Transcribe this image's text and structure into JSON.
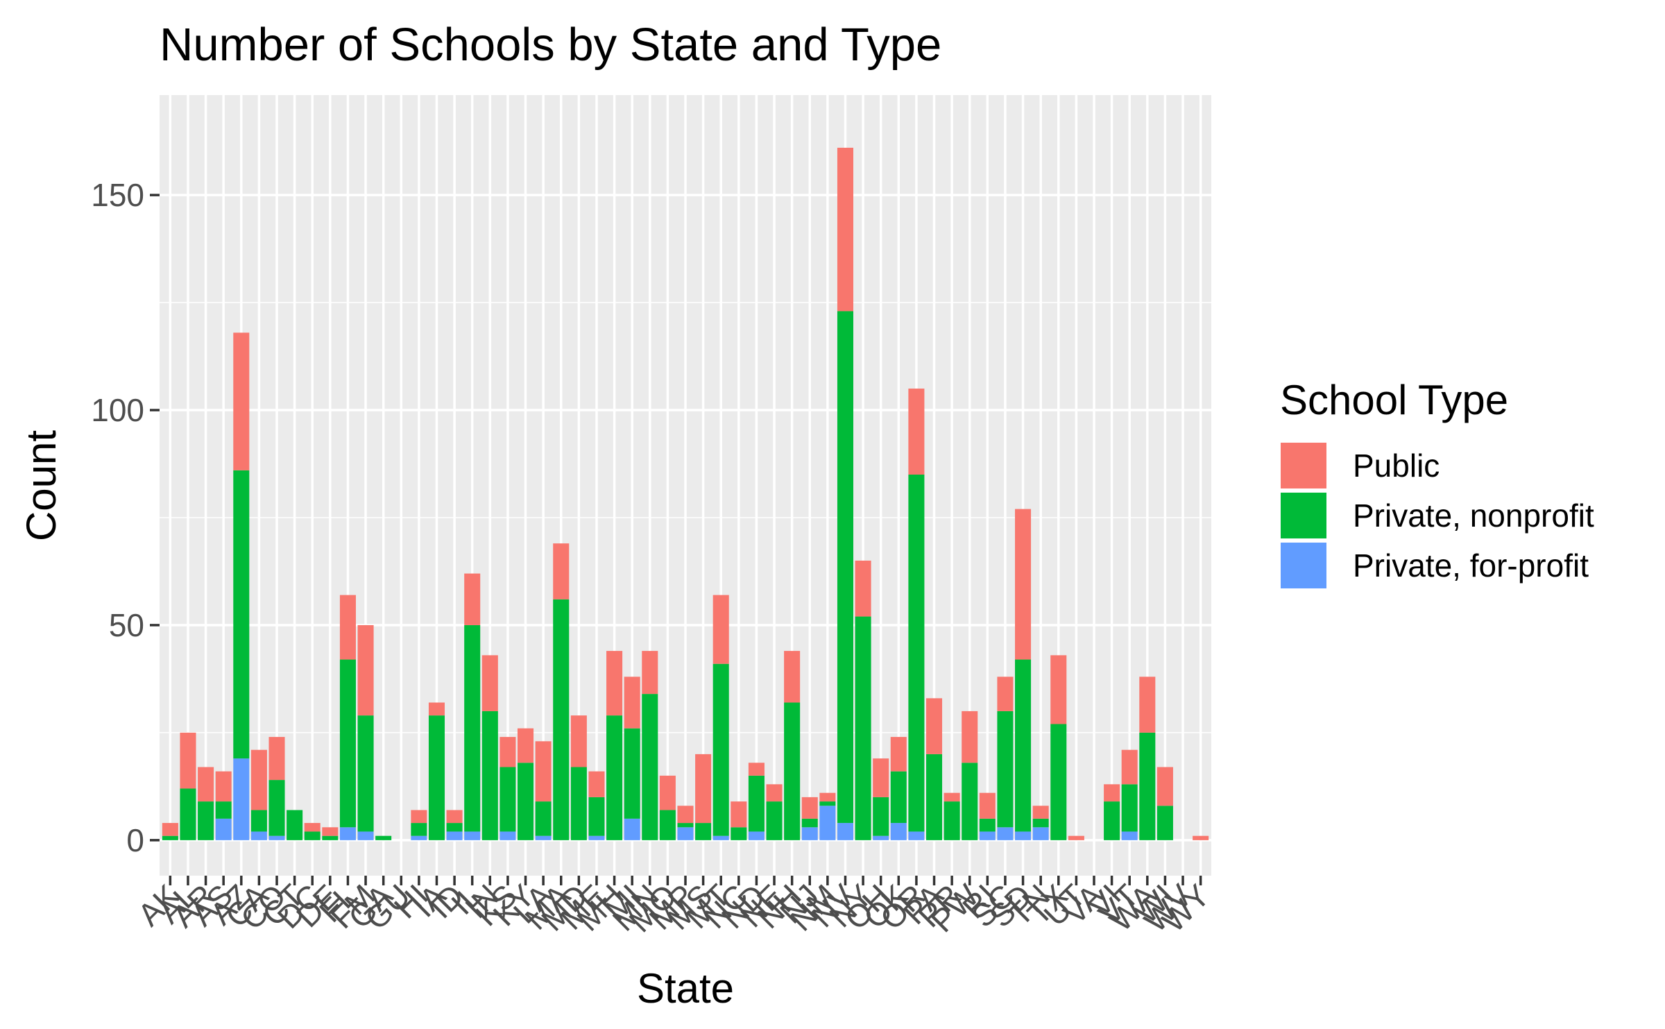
{
  "chart_data": {
    "type": "bar",
    "stacked": true,
    "title": "Number of Schools by State and Type",
    "xlabel": "State",
    "ylabel": "Count",
    "ylim": [
      -8.25,
      173.25
    ],
    "yticks": [
      0,
      50,
      100,
      150
    ],
    "grid": true,
    "legend": {
      "title": "School Type",
      "position": "right"
    },
    "categories": [
      "AK",
      "AL",
      "AR",
      "AS",
      "AZ",
      "CA",
      "CO",
      "CT",
      "DC",
      "DE",
      "FL",
      "FM",
      "GA",
      "GU",
      "HI",
      "IA",
      "ID",
      "IL",
      "IN",
      "KS",
      "KY",
      "LA",
      "MA",
      "MD",
      "ME",
      "MH",
      "MI",
      "MN",
      "MO",
      "MP",
      "MS",
      "MT",
      "NC",
      "ND",
      "NE",
      "NH",
      "NJ",
      "NM",
      "NV",
      "NY",
      "OH",
      "OK",
      "OR",
      "PA",
      "PR",
      "PW",
      "RI",
      "SC",
      "SD",
      "TN",
      "TX",
      "UT",
      "VA",
      "VI",
      "VT",
      "WA",
      "WI",
      "WV",
      "WY"
    ],
    "series": [
      {
        "name": "Private, for-profit",
        "color": "#619CFF",
        "values": [
          0,
          0,
          0,
          5,
          19,
          2,
          1,
          0,
          0,
          0,
          3,
          2,
          0,
          0,
          1,
          0,
          2,
          2,
          0,
          2,
          0,
          1,
          0,
          0,
          1,
          0,
          5,
          0,
          0,
          3,
          0,
          1,
          0,
          2,
          0,
          0,
          3,
          8,
          4,
          0,
          1,
          4,
          2,
          0,
          0,
          0,
          2,
          3,
          2,
          3,
          0,
          0,
          0,
          0,
          2,
          0,
          0,
          0,
          0
        ]
      },
      {
        "name": "Private, nonprofit",
        "color": "#00BA38",
        "values": [
          1,
          12,
          9,
          4,
          67,
          5,
          13,
          7,
          2,
          1,
          39,
          27,
          1,
          0,
          3,
          29,
          2,
          48,
          30,
          15,
          18,
          8,
          56,
          17,
          9,
          29,
          21,
          34,
          7,
          1,
          4,
          40,
          3,
          13,
          9,
          32,
          2,
          1,
          119,
          52,
          9,
          12,
          83,
          20,
          9,
          18,
          3,
          27,
          40,
          2,
          27,
          0,
          0,
          9,
          11,
          25,
          8,
          0,
          0
        ]
      },
      {
        "name": "Public",
        "color": "#F8766D",
        "values": [
          3,
          13,
          8,
          7,
          32,
          14,
          10,
          0,
          2,
          2,
          15,
          21,
          0,
          0,
          3,
          3,
          3,
          12,
          13,
          7,
          8,
          14,
          13,
          12,
          6,
          15,
          12,
          10,
          8,
          4,
          16,
          16,
          6,
          3,
          4,
          12,
          5,
          2,
          38,
          13,
          9,
          8,
          20,
          13,
          2,
          12,
          6,
          8,
          35,
          3,
          16,
          1,
          0,
          4,
          8,
          13,
          9,
          0,
          1
        ]
      }
    ]
  }
}
